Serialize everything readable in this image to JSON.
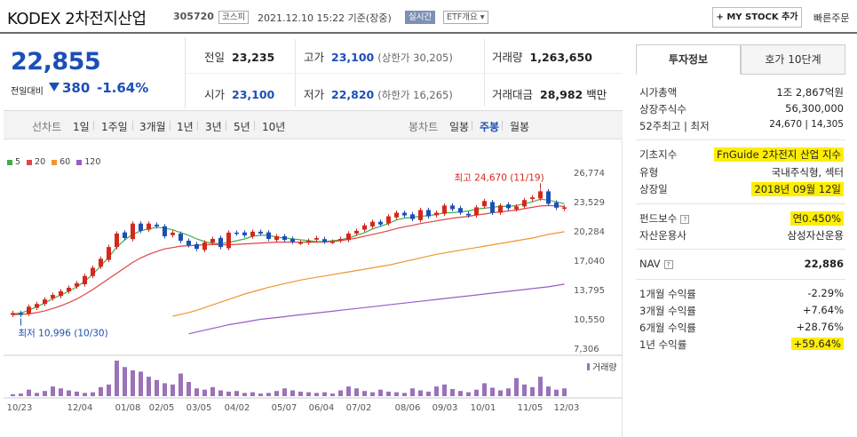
{
  "header": {
    "title": "KODEX 2차전지산업",
    "code": "305720",
    "market_badge": "코스피",
    "datetime": "2021.12.10 15:22 기준(장중)",
    "live_badge": "실시간",
    "etf_dropdown": "ETF개요 ▾",
    "mystock_button": "+ MY STOCK 추가",
    "quick_order": "빠른주문"
  },
  "price": {
    "current": "22,855",
    "change_label": "전일대비",
    "change_value": "380",
    "change_pct": "-1.64%",
    "direction": "down",
    "color": "#1c4fb6"
  },
  "stats": {
    "prev_label": "전일",
    "prev": "23,235",
    "high_label": "고가",
    "high": "23,100",
    "upper_limit": "(상한가 30,205)",
    "vol_label": "거래량",
    "volume": "1,263,650",
    "open_label": "시가",
    "open": "23,100",
    "low_label": "저가",
    "low": "22,820",
    "lower_limit": "(하한가 16,265)",
    "amount_label": "거래대금",
    "amount": "28,982",
    "amount_unit": "백만"
  },
  "toolbar": {
    "line_chart": "선차트",
    "periods": [
      "1일",
      "1주일",
      "3개월",
      "1년",
      "3년",
      "5년",
      "10년"
    ],
    "candle_chart": "봉차트",
    "candle_periods": [
      "일봉",
      "주봉",
      "월봉"
    ],
    "active_candle": "주봉"
  },
  "right_panel": {
    "tabs": [
      "투자정보",
      "호가 10단계"
    ],
    "active_tab": "투자정보",
    "market_cap_label": "시가총액",
    "market_cap": "1조 2,867억원",
    "shares_label": "상장주식수",
    "shares": "56,300,000",
    "w52_label": "52주최고 | 최저",
    "w52": "24,670 | 14,305",
    "index_label": "기초지수",
    "index": "FnGuide 2차전지 산업 지수",
    "type_label": "유형",
    "type": "국내주식형, 섹터",
    "listed_label": "상장일",
    "listed": "2018년 09월 12일",
    "fee_label": "펀드보수",
    "fee": "연0.450%",
    "manager_label": "자산운용사",
    "manager": "삼성자산운용",
    "nav_label": "NAV",
    "nav": "22,886",
    "ret1m_label": "1개월 수익률",
    "ret1m": "-2.29%",
    "ret3m_label": "3개월 수익률",
    "ret3m": "+7.64%",
    "ret6m_label": "6개월 수익률",
    "ret6m": "+28.76%",
    "ret1y_label": "1년 수익률",
    "ret1y": "+59.64%"
  },
  "chart_data": {
    "type": "candlestick",
    "legend": [
      {
        "name": "5",
        "color": "#3fae49"
      },
      {
        "name": "20",
        "color": "#e04545"
      },
      {
        "name": "60",
        "color": "#f0962f"
      },
      {
        "name": "120",
        "color": "#9a5cc4"
      }
    ],
    "y_ticks": [
      "26,774",
      "23,529",
      "20,284",
      "17,040",
      "13,795",
      "10,550",
      "7,306"
    ],
    "y_range": [
      7306,
      26774
    ],
    "x_ticks": [
      "10/23",
      "12/04",
      "01/08",
      "02/05",
      "03/05",
      "04/02",
      "05/07",
      "06/04",
      "07/02",
      "08/06",
      "09/03",
      "10/01",
      "11/05",
      "12/03"
    ],
    "annotation_high": "최고 24,670 (11/19)",
    "annotation_low": "최저 10,996 (10/30)",
    "volume_label": "거래량",
    "closes": [
      11200,
      10996,
      11900,
      12200,
      12700,
      13200,
      13600,
      14000,
      14500,
      15300,
      16200,
      17200,
      18500,
      20000,
      19500,
      21100,
      20300,
      21100,
      20800,
      19700,
      20100,
      19200,
      18700,
      18300,
      19000,
      19400,
      18500,
      20100,
      20000,
      19800,
      20200,
      20000,
      19400,
      19700,
      19300,
      19100,
      19000,
      19200,
      19500,
      19100,
      19100,
      19400,
      20000,
      20300,
      20900,
      21300,
      21000,
      21900,
      22300,
      22000,
      21600,
      22600,
      21900,
      22300,
      23100,
      22700,
      22300,
      22000,
      22900,
      23600,
      22300,
      23100,
      22800,
      23000,
      23700,
      24000,
      24670,
      23300,
      22855,
      22900
    ],
    "ma5": [
      11100,
      11200,
      11500,
      11900,
      12300,
      12800,
      13200,
      13600,
      14100,
      14700,
      15500,
      16400,
      17400,
      18500,
      19300,
      19900,
      20300,
      20500,
      20700,
      20600,
      20400,
      20100,
      19800,
      19400,
      19100,
      18900,
      18900,
      19000,
      19200,
      19400,
      19700,
      19800,
      19800,
      19600,
      19500,
      19400,
      19300,
      19200,
      19100,
      19100,
      19200,
      19300,
      19500,
      19800,
      20100,
      20500,
      20800,
      21100,
      21500,
      21700,
      21800,
      21900,
      22000,
      22100,
      22300,
      22300,
      22400,
      22500,
      22700,
      22800,
      22900,
      23000,
      23000,
      23100,
      23300,
      23500,
      23800,
      23700,
      23500,
      23300
    ],
    "ma20": [
      11000,
      11050,
      11100,
      11250,
      11450,
      11700,
      12000,
      12350,
      12750,
      13250,
      13800,
      14400,
      15000,
      15600,
      16200,
      16800,
      17300,
      17700,
      18000,
      18300,
      18450,
      18600,
      18650,
      18700,
      18750,
      18800,
      18750,
      18750,
      18800,
      18850,
      18900,
      18950,
      19000,
      19050,
      19050,
      19050,
      19050,
      19050,
      19050,
      19050,
      19100,
      19200,
      19350,
      19500,
      19700,
      19900,
      20100,
      20300,
      20550,
      20750,
      20900,
      21100,
      21250,
      21400,
      21550,
      21700,
      21800,
      21900,
      22050,
      22150,
      22300,
      22400,
      22500,
      22600,
      22750,
      22900,
      23050,
      23100,
      23050,
      23000
    ],
    "ma60": [
      null,
      null,
      null,
      null,
      null,
      null,
      null,
      null,
      null,
      null,
      null,
      null,
      null,
      null,
      null,
      null,
      null,
      null,
      null,
      null,
      10850,
      11050,
      11250,
      11500,
      11800,
      12100,
      12400,
      12700,
      13000,
      13300,
      13550,
      13800,
      14050,
      14250,
      14450,
      14650,
      14850,
      15000,
      15150,
      15300,
      15450,
      15600,
      15750,
      15900,
      16050,
      16200,
      16350,
      16500,
      16700,
      16900,
      17100,
      17300,
      17500,
      17700,
      17850,
      18000,
      18150,
      18300,
      18450,
      18600,
      18750,
      18900,
      19050,
      19200,
      19350,
      19500,
      19700,
      19900,
      20050,
      20200
    ],
    "ma120": [
      null,
      null,
      null,
      null,
      null,
      null,
      null,
      null,
      null,
      null,
      null,
      null,
      null,
      null,
      null,
      null,
      null,
      null,
      null,
      null,
      null,
      null,
      8900,
      9100,
      9300,
      9500,
      9700,
      9900,
      10050,
      10200,
      10350,
      10500,
      10600,
      10700,
      10800,
      10900,
      11000,
      11100,
      11200,
      11300,
      11400,
      11500,
      11600,
      11700,
      11800,
      11900,
      12000,
      12100,
      12200,
      12300,
      12400,
      12500,
      12600,
      12700,
      12800,
      12900,
      13000,
      13100,
      13200,
      13300,
      13400,
      13500,
      13600,
      13700,
      13800,
      13900,
      14000,
      14100,
      14250,
      14400
    ],
    "volumes": [
      3,
      4,
      10,
      5,
      8,
      15,
      12,
      9,
      7,
      5,
      6,
      14,
      18,
      55,
      45,
      40,
      38,
      30,
      25,
      20,
      18,
      35,
      22,
      12,
      10,
      14,
      9,
      7,
      8,
      5,
      6,
      4,
      5,
      8,
      12,
      9,
      7,
      6,
      5,
      6,
      4,
      9,
      15,
      12,
      8,
      6,
      10,
      7,
      6,
      5,
      12,
      9,
      7,
      15,
      18,
      11,
      8,
      6,
      10,
      20,
      13,
      9,
      12,
      28,
      18,
      14,
      30,
      15,
      10,
      12
    ]
  }
}
